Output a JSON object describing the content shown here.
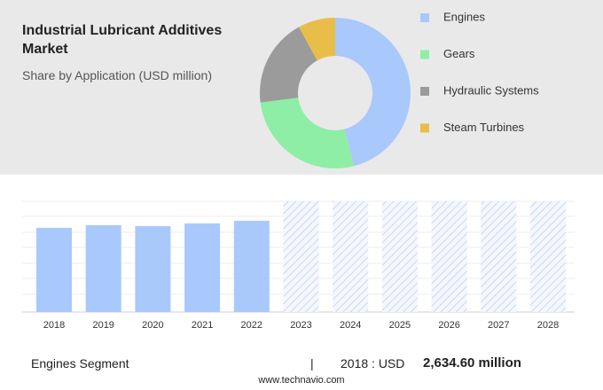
{
  "chart_data": [
    {
      "type": "donut",
      "title": "Industrial Lubricant Additives Market",
      "subtitle": "Share by Application (USD million)",
      "categories": [
        "Engines",
        "Gears",
        "Hydraulic Systems",
        "Steam Turbines"
      ],
      "values": [
        46,
        27,
        19,
        8
      ],
      "colors": [
        "#a9c8fb",
        "#8eeea6",
        "#9b9b9b",
        "#e8be48"
      ]
    },
    {
      "type": "bar",
      "categories": [
        "2018",
        "2019",
        "2020",
        "2021",
        "2022",
        "2023",
        "2024",
        "2025",
        "2026",
        "2027",
        "2028"
      ],
      "values": [
        2634.6,
        2718,
        2690,
        2773,
        2856,
        null,
        null,
        null,
        null,
        null,
        null
      ],
      "color": "#a9c8fb",
      "ylim": [
        0,
        3470
      ]
    }
  ],
  "footer": {
    "segment": "Engines Segment",
    "separator": "|",
    "year_label": "2018 : USD",
    "value": "2,634.60 million",
    "source": "www.technavio.com"
  }
}
